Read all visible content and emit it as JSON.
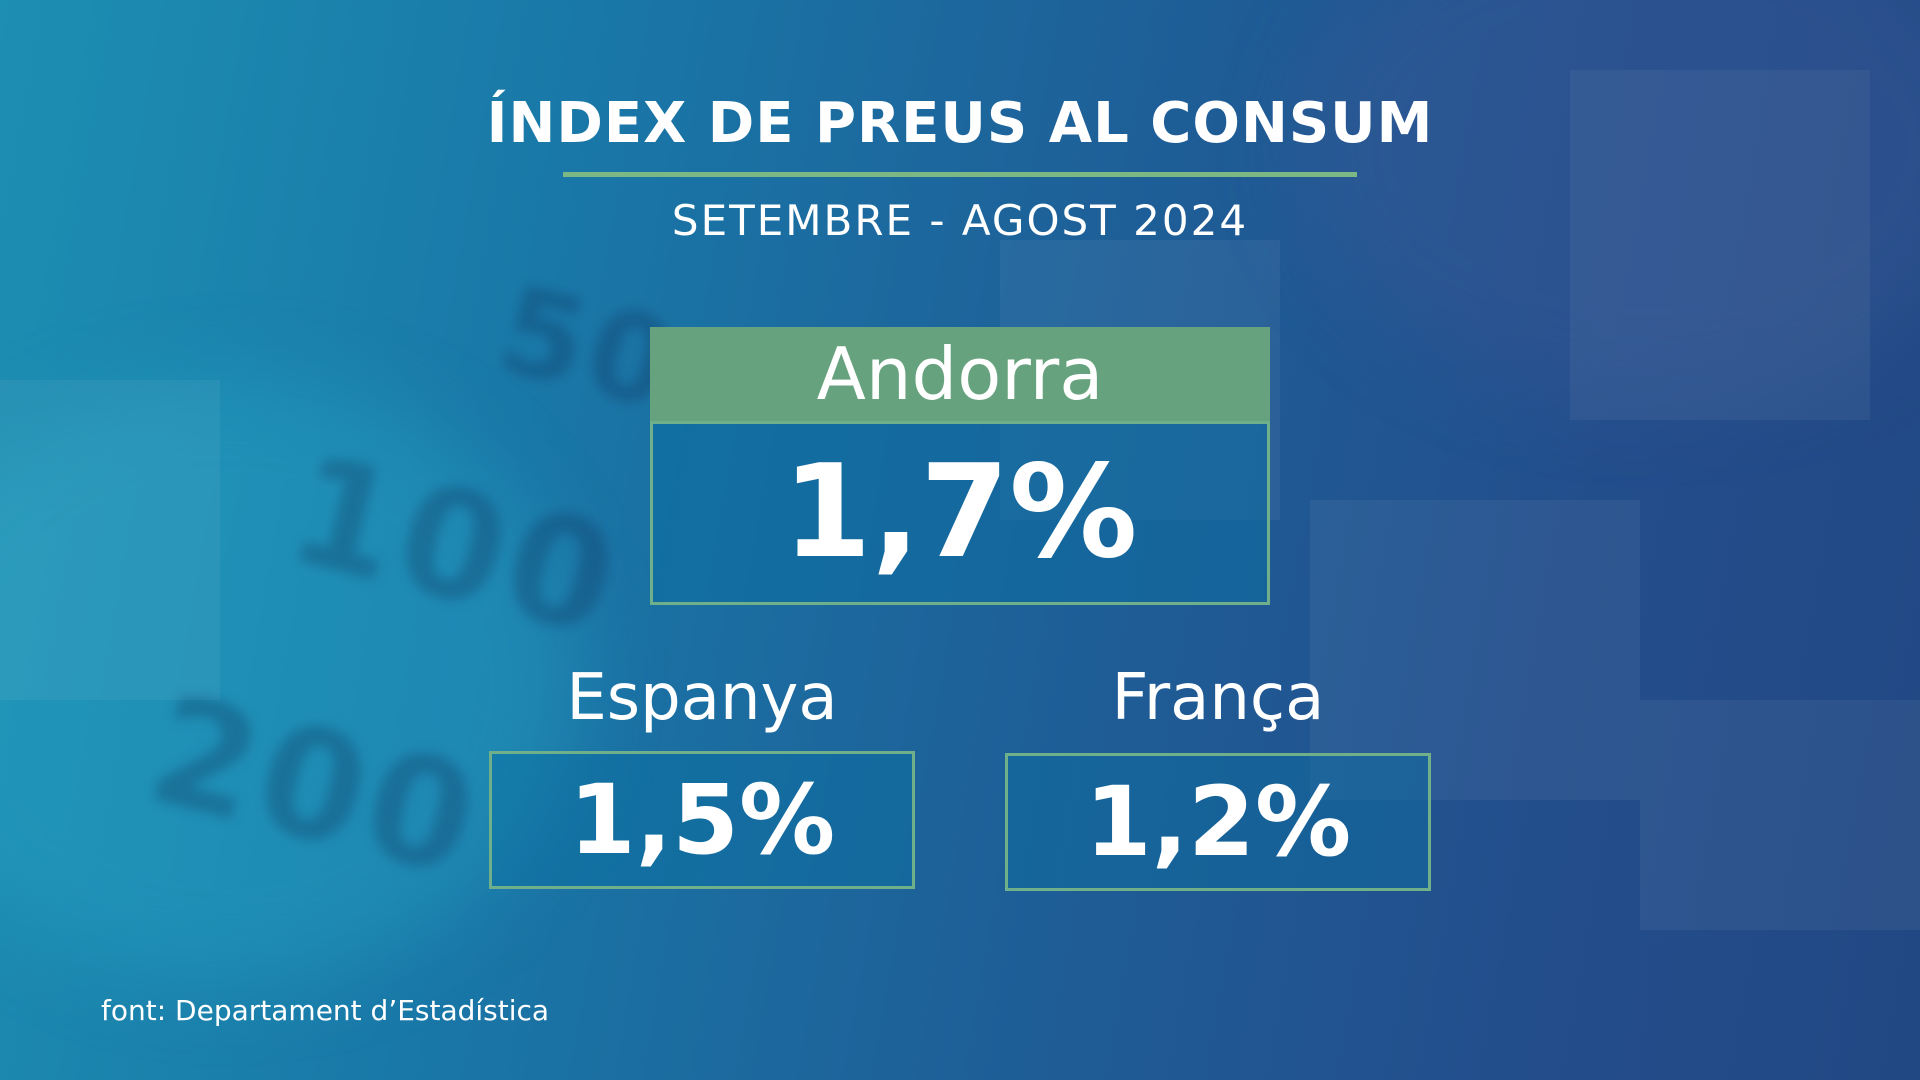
{
  "title": "ÍNDEX DE PREUS AL CONSUM",
  "subtitle": "SETEMBRE - AGOST 2024",
  "main": {
    "country": "Andorra",
    "value": "1,7%"
  },
  "secondary": [
    {
      "country": "Espanya",
      "value": "1,5%"
    },
    {
      "country": "França",
      "value": "1,2%"
    }
  ],
  "source": "font: Departament d’Estadística",
  "colors": {
    "accent_green": "#66a27d",
    "border_green": "#6fb08a",
    "text": "#ffffff"
  }
}
